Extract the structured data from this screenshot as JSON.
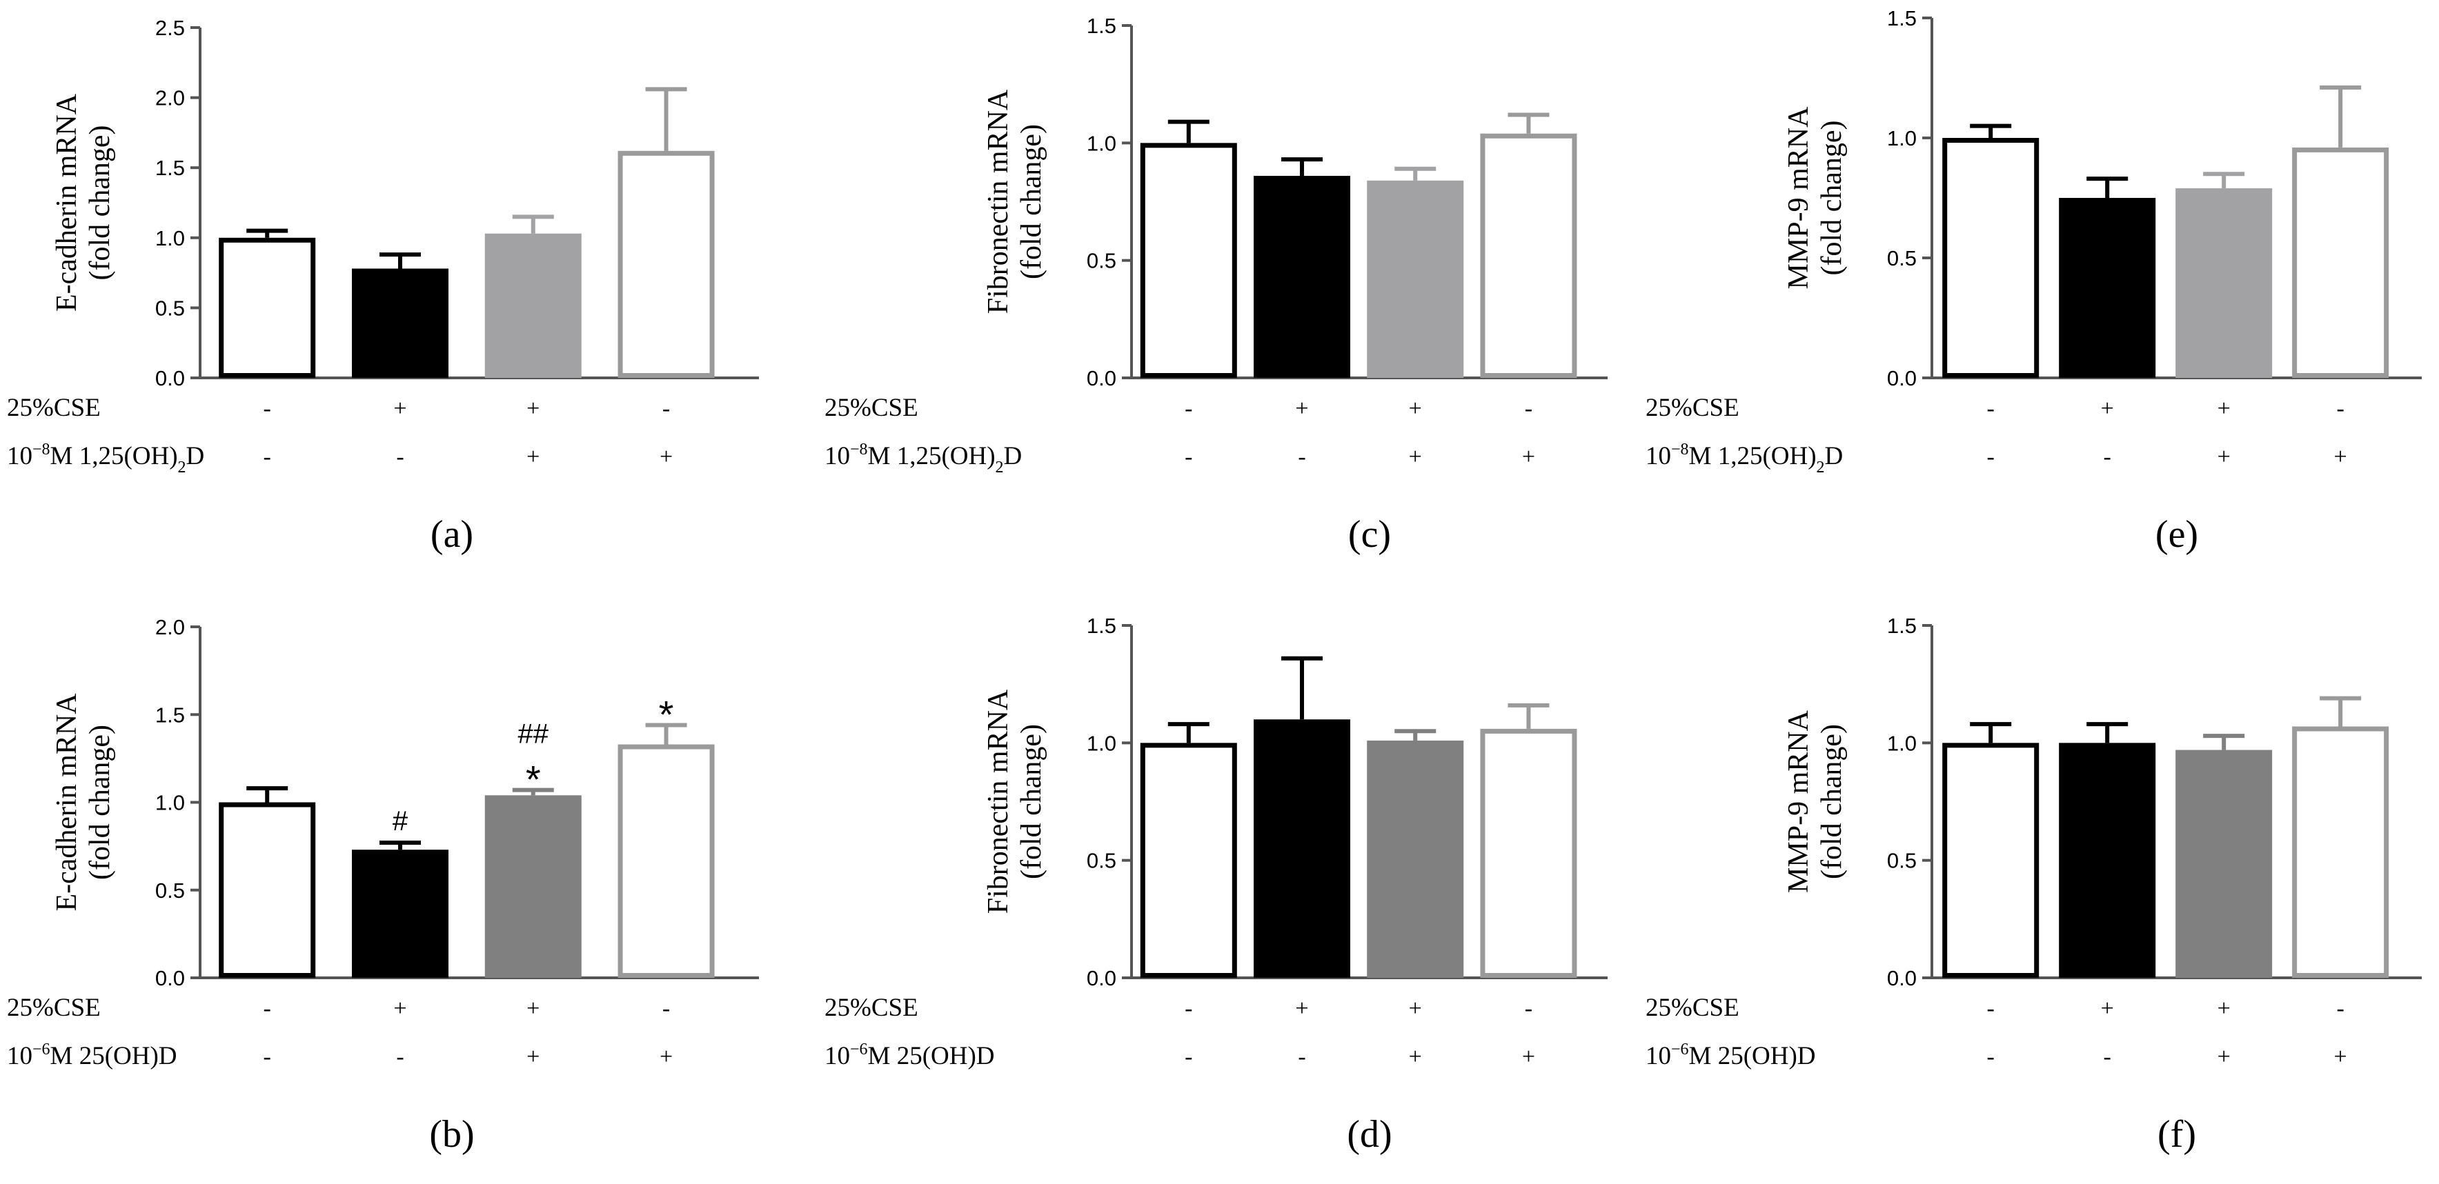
{
  "figure": {
    "background": "#ffffff",
    "rows": {
      "cse_label": "25%CSE",
      "treatment_top": [
        "10",
        "−8",
        "M 1,25(OH)",
        "2",
        "D"
      ],
      "treatment_bottom": [
        "10",
        "−6",
        "M 25(OH)D"
      ],
      "cse_signs": [
        "-",
        "+",
        "+",
        "-"
      ],
      "treatment_signs": [
        "-",
        "-",
        "+",
        "+"
      ]
    }
  },
  "chart_data": [
    {
      "id": "a",
      "panel_label": "(a)",
      "type": "bar",
      "ylabel_line1": "E-cadherin mRNA",
      "ylabel_line2": "(fold change)",
      "ylim": [
        0,
        2.5
      ],
      "yticks": [
        {
          "v": 0,
          "t": "0.0"
        },
        {
          "v": 0.5,
          "t": "0.5"
        },
        {
          "v": 1,
          "t": "1.0"
        },
        {
          "v": 1.5,
          "t": "1.5"
        },
        {
          "v": 2,
          "t": "2.0"
        },
        {
          "v": 2.5,
          "t": "2.5"
        }
      ],
      "treatment": "top",
      "bars": [
        {
          "value": 1.0,
          "error": 0.05,
          "style": "hollow_black"
        },
        {
          "value": 0.78,
          "error": 0.1,
          "style": "filled_black"
        },
        {
          "value": 1.03,
          "error": 0.12,
          "style": "filled_lightgray"
        },
        {
          "value": 1.62,
          "error": 0.44,
          "style": "hollow_gray"
        }
      ],
      "annotations": []
    },
    {
      "id": "b",
      "panel_label": "(b)",
      "type": "bar",
      "ylabel_line1": "E-cadherin mRNA",
      "ylabel_line2": "(fold change)",
      "ylim": [
        0,
        2.0
      ],
      "yticks": [
        {
          "v": 0,
          "t": "0.0"
        },
        {
          "v": 0.5,
          "t": "0.5"
        },
        {
          "v": 1,
          "t": "1.0"
        },
        {
          "v": 1.5,
          "t": "1.5"
        },
        {
          "v": 2,
          "t": "2.0"
        }
      ],
      "treatment": "bottom",
      "bars": [
        {
          "value": 1.0,
          "error": 0.08,
          "style": "hollow_black"
        },
        {
          "value": 0.73,
          "error": 0.04,
          "style": "filled_black"
        },
        {
          "value": 1.04,
          "error": 0.03,
          "style": "filled_darkgray"
        },
        {
          "value": 1.33,
          "error": 0.11,
          "style": "hollow_gray"
        }
      ],
      "annotations": [
        {
          "bar": 1,
          "text": "#",
          "level": 0
        },
        {
          "bar": 2,
          "text": "*",
          "level": 0
        },
        {
          "bar": 2,
          "text": "##",
          "level": 1
        },
        {
          "bar": 3,
          "text": "*",
          "level": 0
        }
      ]
    },
    {
      "id": "c",
      "panel_label": "(c)",
      "type": "bar",
      "ylabel_line1": "Fibronectin mRNA",
      "ylabel_line2": "(fold change)",
      "ylim": [
        0,
        1.5
      ],
      "yticks": [
        {
          "v": 0,
          "t": "0.0"
        },
        {
          "v": 0.5,
          "t": "0.5"
        },
        {
          "v": 1,
          "t": "1.0"
        },
        {
          "v": 1.5,
          "t": "1.5"
        }
      ],
      "treatment": "top",
      "bars": [
        {
          "value": 1.0,
          "error": 0.09,
          "style": "hollow_black"
        },
        {
          "value": 0.86,
          "error": 0.07,
          "style": "filled_black"
        },
        {
          "value": 0.84,
          "error": 0.05,
          "style": "filled_lightgray"
        },
        {
          "value": 1.04,
          "error": 0.08,
          "style": "hollow_gray"
        }
      ],
      "annotations": []
    },
    {
      "id": "d",
      "panel_label": "(d)",
      "type": "bar",
      "ylabel_line1": "Fibronectin mRNA",
      "ylabel_line2": "(fold change)",
      "ylim": [
        0,
        1.5
      ],
      "yticks": [
        {
          "v": 0,
          "t": "0.0"
        },
        {
          "v": 0.5,
          "t": "0.5"
        },
        {
          "v": 1,
          "t": "1.0"
        },
        {
          "v": 1.5,
          "t": "1.5"
        }
      ],
      "treatment": "bottom",
      "bars": [
        {
          "value": 1.0,
          "error": 0.08,
          "style": "hollow_black"
        },
        {
          "value": 1.1,
          "error": 0.26,
          "style": "filled_black"
        },
        {
          "value": 1.01,
          "error": 0.04,
          "style": "filled_darkgray"
        },
        {
          "value": 1.06,
          "error": 0.1,
          "style": "hollow_gray"
        }
      ],
      "annotations": []
    },
    {
      "id": "e",
      "panel_label": "(e)",
      "type": "bar",
      "ylabel_line1": "MMP-9 mRNA",
      "ylabel_line2": "(fold change)",
      "ylim": [
        0,
        1.5
      ],
      "yticks": [
        {
          "v": 0,
          "t": "0.0"
        },
        {
          "v": 0.5,
          "t": "0.5"
        },
        {
          "v": 1,
          "t": "1.0"
        },
        {
          "v": 1.5,
          "t": "1.5"
        }
      ],
      "treatment": "top",
      "bars": [
        {
          "value": 1.0,
          "error": 0.05,
          "style": "hollow_black"
        },
        {
          "value": 0.75,
          "error": 0.08,
          "style": "filled_black"
        },
        {
          "value": 0.79,
          "error": 0.06,
          "style": "filled_lightgray"
        },
        {
          "value": 0.96,
          "error": 0.25,
          "style": "hollow_gray"
        }
      ],
      "annotations": []
    },
    {
      "id": "f",
      "panel_label": "(f)",
      "type": "bar",
      "ylabel_line1": "MMP-9 mRNA",
      "ylabel_line2": "(fold change)",
      "ylim": [
        0,
        1.5
      ],
      "yticks": [
        {
          "v": 0,
          "t": "0.0"
        },
        {
          "v": 0.5,
          "t": "0.5"
        },
        {
          "v": 1,
          "t": "1.0"
        },
        {
          "v": 1.5,
          "t": "1.5"
        }
      ],
      "treatment": "bottom",
      "bars": [
        {
          "value": 1.0,
          "error": 0.08,
          "style": "hollow_black"
        },
        {
          "value": 1.0,
          "error": 0.08,
          "style": "filled_black"
        },
        {
          "value": 0.97,
          "error": 0.06,
          "style": "filled_darkgray"
        },
        {
          "value": 1.07,
          "error": 0.12,
          "style": "hollow_gray"
        }
      ],
      "annotations": []
    }
  ],
  "colors": {
    "axis": "#555555",
    "black": "#000000",
    "light_gray": "#a2a2a4",
    "dark_gray": "#808080",
    "hollow_gray_stroke": "#9a9a9a"
  }
}
